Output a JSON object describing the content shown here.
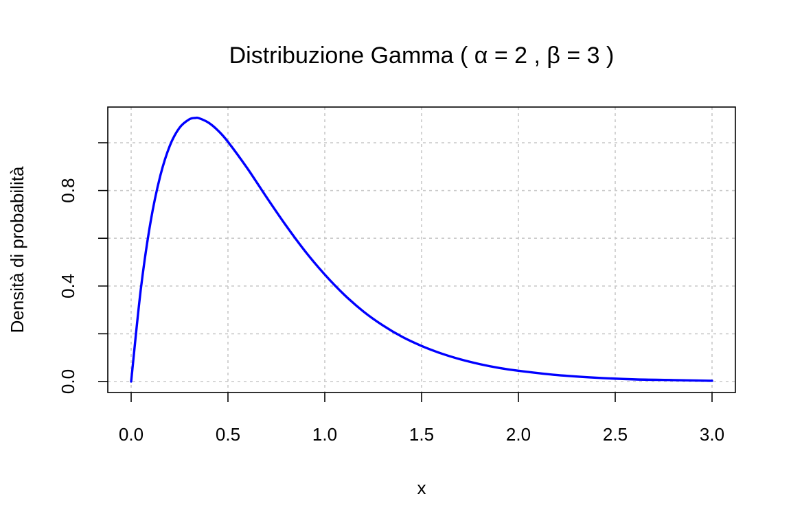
{
  "chart_data": {
    "type": "line",
    "title": "Distribuzione Gamma ( α = 2 , β = 3 )",
    "xlabel": "x",
    "ylabel": "Densità di probabilità",
    "xlim": [
      0,
      3
    ],
    "ylim": [
      0,
      1.1036
    ],
    "x_ticks": [
      0,
      0.5,
      1,
      1.5,
      2,
      2.5,
      3
    ],
    "x_tick_labels": [
      "0.0",
      "0.5",
      "1.0",
      "1.5",
      "2.0",
      "2.5",
      "3.0"
    ],
    "y_ticks": [
      0,
      0.2,
      0.4,
      0.6,
      0.8,
      1.0
    ],
    "y_tick_labels": [
      "0.0",
      "",
      "0.4",
      "",
      "0.8",
      ""
    ],
    "grid": true,
    "series": [
      {
        "color": "#0000ff",
        "x": [
          0,
          0.05,
          0.1,
          0.15,
          0.2,
          0.25,
          0.3,
          0.333,
          0.35,
          0.4,
          0.45,
          0.5,
          0.6,
          0.7,
          0.8,
          0.9,
          1.0,
          1.1,
          1.2,
          1.3,
          1.4,
          1.5,
          1.6,
          1.7,
          1.8,
          1.9,
          2.0,
          2.2,
          2.4,
          2.6,
          2.8,
          3.0
        ],
        "y": [
          0,
          0.387,
          0.667,
          0.86,
          0.988,
          1.063,
          1.098,
          1.104,
          1.103,
          1.084,
          1.05,
          1.004,
          0.893,
          0.771,
          0.653,
          0.544,
          0.448,
          0.364,
          0.293,
          0.235,
          0.187,
          0.149,
          0.118,
          0.093,
          0.073,
          0.057,
          0.045,
          0.027,
          0.016,
          0.009,
          0.006,
          0.003
        ]
      }
    ]
  }
}
